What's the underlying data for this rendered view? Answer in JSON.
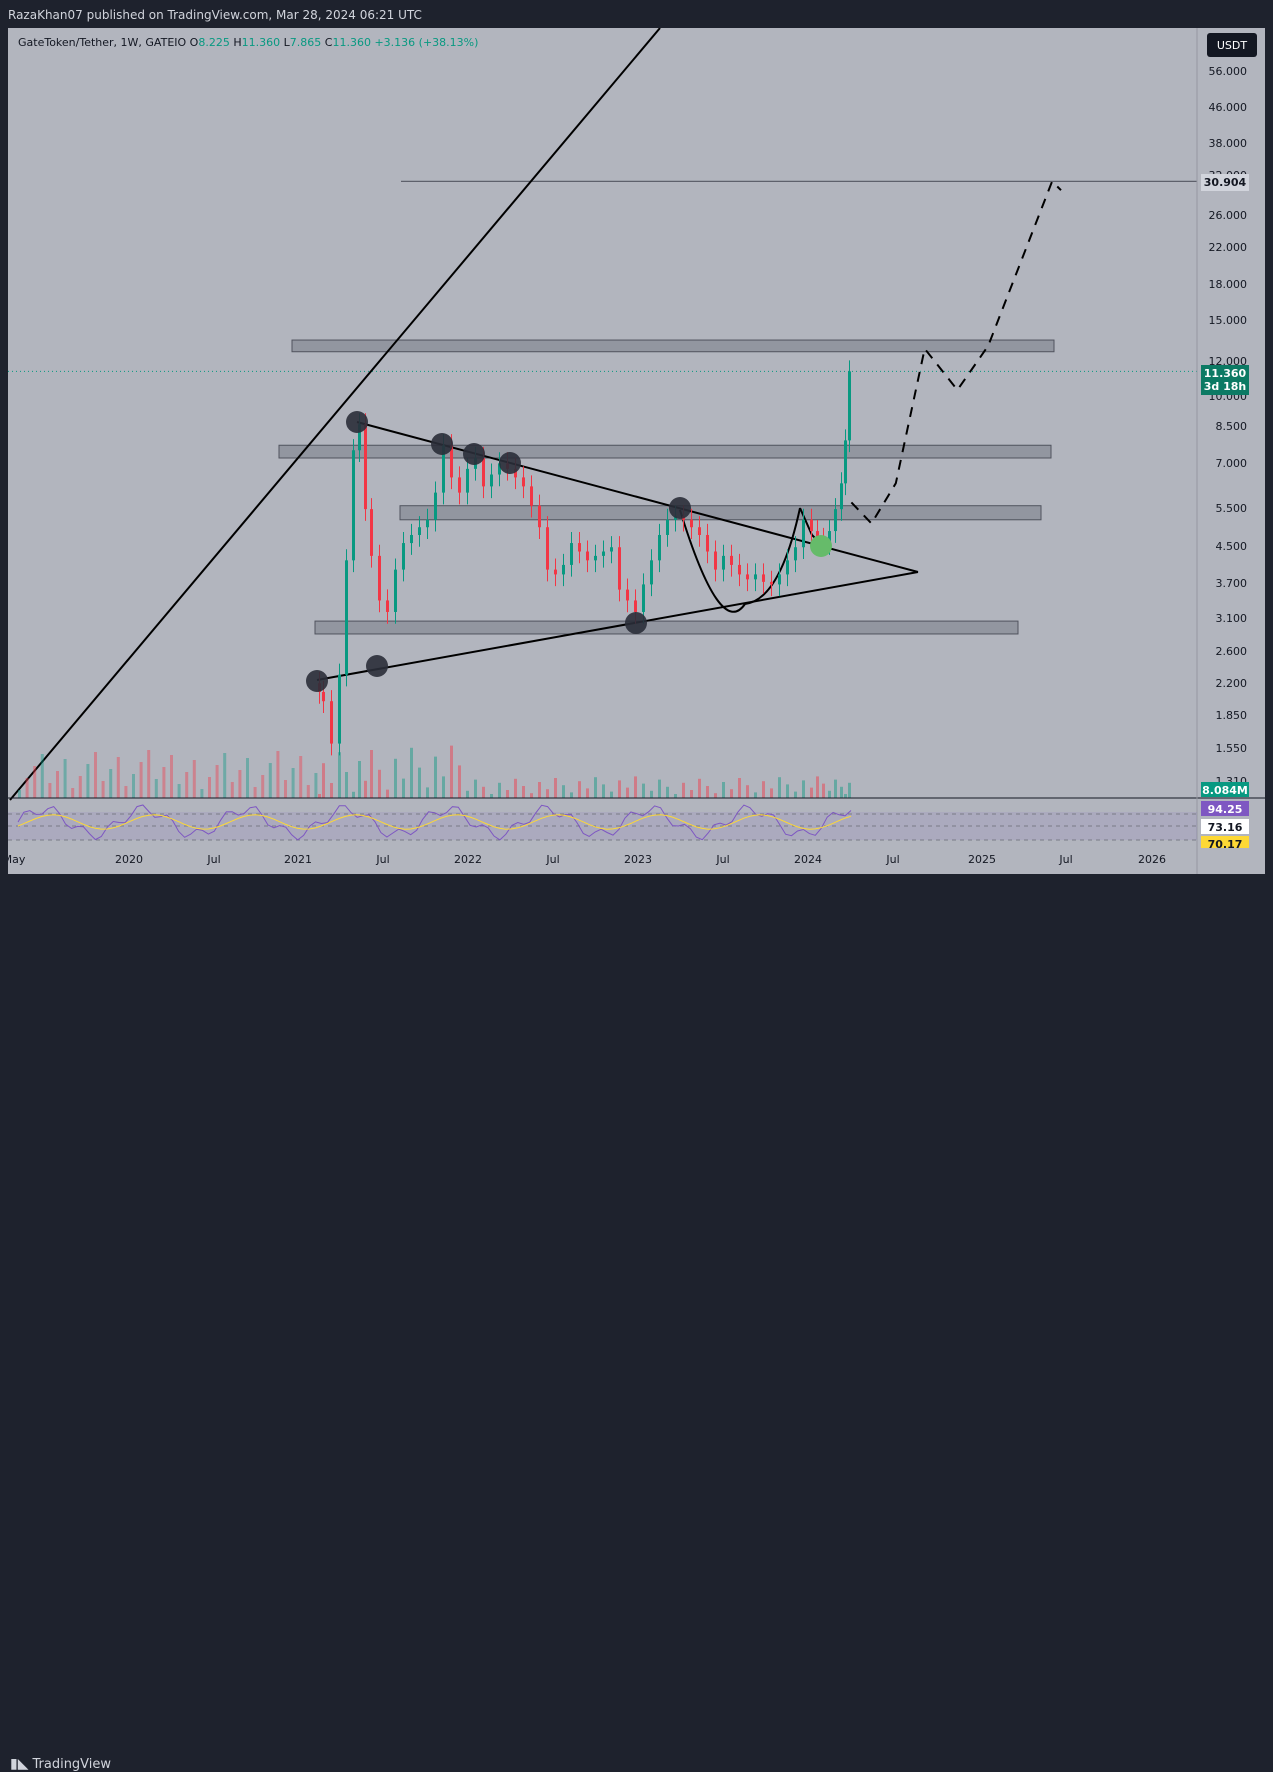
{
  "header": {
    "published": "RazaKhan07 published on TradingView.com, Mar 28, 2024 06:21 UTC"
  },
  "legend": {
    "symbol": "GateToken/Tether, 1W, GATEIO",
    "o_label": "O",
    "o_value": "8.225",
    "h_label": "H",
    "h_value": "11.360",
    "l_label": "L",
    "l_value": "7.865",
    "c_label": "C",
    "c_value": "11.360",
    "change": "+3.136 (+38.13%)"
  },
  "currency_button": "USDT",
  "footer": {
    "brand": "TradingView"
  },
  "colors": {
    "up": "#089981",
    "down": "#f23645",
    "background": "#b2b5be",
    "zone": "#787b86",
    "rsi": "#7e57c2",
    "rsi_ma": "#fdd835"
  },
  "chart_data": {
    "type": "candlestick",
    "y_scale": "log",
    "y_axis_ticks": [
      "56.000",
      "46.000",
      "38.000",
      "32.000",
      "26.000",
      "22.000",
      "18.000",
      "15.000",
      "12.000",
      "10.000",
      "8.500",
      "7.000",
      "5.500",
      "4.500",
      "3.700",
      "3.100",
      "2.600",
      "2.200",
      "1.850",
      "1.550",
      "1.310"
    ],
    "x_axis_ticks": [
      "May",
      "2020",
      "Jul",
      "2021",
      "Jul",
      "2022",
      "Jul",
      "2023",
      "Jul",
      "2024",
      "Jul",
      "2025",
      "Jul",
      "2026"
    ],
    "last_price": "11.360",
    "last_price_countdown": "3d 18h",
    "target_label": "30.904",
    "volume_label": "8.084M",
    "rsi_labels": [
      "94.25",
      "73.16",
      "70.17"
    ],
    "horizontal_zones": [
      {
        "name": "zone-resistance-top",
        "from": 12.6,
        "to": 13.4
      },
      {
        "name": "zone-upper",
        "from": 7.2,
        "to": 7.7
      },
      {
        "name": "zone-mid",
        "from": 5.2,
        "to": 5.6
      },
      {
        "name": "zone-lower",
        "from": 2.85,
        "to": 3.05
      }
    ],
    "target_level": 30.904,
    "projection_path": [
      {
        "date": "2024-03-28",
        "price": 5.7
      },
      {
        "date": "2024-05-10",
        "price": 5.1
      },
      {
        "date": "2024-07-01",
        "price": 6.3
      },
      {
        "date": "2024-09-01",
        "price": 12.8
      },
      {
        "date": "2024-11-10",
        "price": 10.3
      },
      {
        "date": "2025-01-15",
        "price": 13.0
      },
      {
        "date": "2025-06-01",
        "price": 30.9
      },
      {
        "date": "2025-06-20",
        "price": 29.5
      }
    ]
  }
}
